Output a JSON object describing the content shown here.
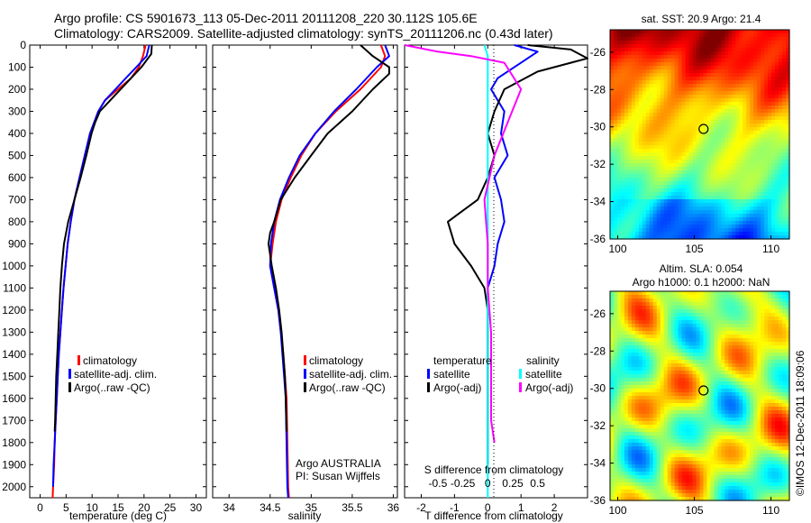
{
  "title_line1": "Argo profile: CS 5901673_113 05-Dec-2011 20111208_220 30.112S 105.6E",
  "title_line2": "Climatology: CARS2009. Satellite-adjusted climatology: synTS_20111206.nc (0.43d later)",
  "colors": {
    "climatology": "#ff0000",
    "satellite_adj": "#0000ff",
    "argo": "#000000",
    "salinity_satellite": "#00ffff",
    "salinity_argo": "#ff00ff"
  },
  "chart_data": [
    {
      "type": "line",
      "id": "temperature",
      "xlabel": "temperature (deg C)",
      "ylabel": "",
      "xlim": [
        -2,
        32
      ],
      "ylim": [
        2050,
        0
      ],
      "xticks": [
        0,
        5,
        10,
        15,
        20,
        25,
        30
      ],
      "yticks": [
        0,
        100,
        200,
        300,
        400,
        500,
        600,
        700,
        800,
        900,
        1000,
        1100,
        1200,
        1300,
        1400,
        1500,
        1600,
        1700,
        1800,
        1900,
        2000
      ],
      "legend": [
        "climatology",
        "satellite-adj. clim.",
        "Argo(..raw -QC)"
      ],
      "series": [
        {
          "name": "climatology",
          "color": "#ff0000",
          "x": [
            20.3,
            19.8,
            19.0,
            17.5,
            15.0,
            12.5,
            11.2,
            10.4,
            9.6,
            8.6,
            7.6,
            6.6,
            5.9,
            5.3,
            4.9,
            4.5,
            4.2,
            3.9,
            3.6,
            3.4,
            3.2,
            3.0,
            2.9,
            2.8,
            2.7,
            2.6,
            2.5,
            2.4
          ],
          "y": [
            0,
            50,
            100,
            150,
            200,
            250,
            300,
            350,
            400,
            500,
            600,
            700,
            800,
            900,
            1000,
            1100,
            1200,
            1300,
            1400,
            1500,
            1600,
            1700,
            1750,
            1800,
            1900,
            1950,
            2000,
            2050
          ]
        },
        {
          "name": "satellite-adj. clim.",
          "color": "#0000ff",
          "x": [
            21.0,
            20.5,
            18.5,
            16.5,
            14.5,
            12.5,
            11.2,
            10.4,
            9.6,
            8.6,
            7.6,
            6.6,
            5.9,
            5.3,
            4.9,
            4.5,
            4.2,
            3.9,
            3.6,
            3.4,
            3.2,
            3.0,
            2.8,
            2.6,
            2.5
          ],
          "y": [
            0,
            50,
            100,
            150,
            200,
            250,
            300,
            350,
            400,
            500,
            600,
            700,
            800,
            900,
            1000,
            1100,
            1200,
            1300,
            1400,
            1500,
            1600,
            1700,
            1800,
            1900,
            2000
          ]
        },
        {
          "name": "Argo(..raw -QC)",
          "color": "#000000",
          "x": [
            21.5,
            21.4,
            19.5,
            17.5,
            15.5,
            13.5,
            11.5,
            10.6,
            9.9,
            8.9,
            7.8,
            6.6,
            5.4,
            4.6,
            4.2,
            3.9,
            3.7,
            3.5,
            3.3,
            3.1,
            3.0,
            2.9,
            2.8
          ],
          "y": [
            0,
            40,
            100,
            150,
            200,
            250,
            300,
            350,
            400,
            500,
            600,
            700,
            800,
            900,
            1000,
            1100,
            1200,
            1300,
            1400,
            1500,
            1600,
            1700,
            1750
          ]
        }
      ]
    },
    {
      "type": "line",
      "id": "salinity",
      "xlabel": "salinity",
      "xlim": [
        33.8,
        36.05
      ],
      "ylim": [
        2050,
        0
      ],
      "xticks": [
        34,
        34.5,
        35,
        35.5,
        36
      ],
      "xticklabels": [
        "34",
        "34.5",
        "35",
        "35.5",
        "36"
      ],
      "legend": [
        "climatology",
        "satellite-adj. clim.",
        "Argo(..raw -QC)"
      ],
      "annotation_line1": "Argo AUSTRALIA",
      "annotation_line2": "PI: Susan Wijffels",
      "series": [
        {
          "name": "climatology",
          "color": "#ff0000",
          "x": [
            35.85,
            35.9,
            35.85,
            35.6,
            35.3,
            35.05,
            34.88,
            34.75,
            34.64,
            34.57,
            34.53,
            34.5,
            34.55,
            34.6,
            34.63,
            34.66,
            34.68,
            34.7,
            34.71,
            34.72,
            34.73
          ],
          "y": [
            0,
            50,
            100,
            200,
            300,
            400,
            500,
            600,
            700,
            800,
            900,
            1000,
            1100,
            1200,
            1300,
            1400,
            1500,
            1600,
            1800,
            2000,
            2050
          ]
        },
        {
          "name": "satellite-adj. clim.",
          "color": "#0000ff",
          "x": [
            35.9,
            35.95,
            35.8,
            35.55,
            35.28,
            35.05,
            34.86,
            34.73,
            34.62,
            34.55,
            34.51,
            34.5,
            34.55,
            34.6,
            34.63,
            34.65,
            34.67,
            34.69,
            34.7,
            34.71,
            34.72
          ],
          "y": [
            0,
            50,
            100,
            200,
            300,
            400,
            500,
            600,
            700,
            800,
            900,
            1000,
            1100,
            1200,
            1300,
            1400,
            1500,
            1600,
            1800,
            2000,
            2050
          ]
        },
        {
          "name": "Argo(..raw -QC)",
          "color": "#000000",
          "x": [
            35.6,
            35.75,
            35.95,
            35.95,
            35.75,
            35.5,
            35.2,
            35.0,
            34.8,
            34.63,
            34.55,
            34.5,
            34.48,
            34.52,
            34.57,
            34.61,
            34.64,
            34.66,
            34.68,
            34.69,
            34.7
          ],
          "y": [
            0,
            50,
            100,
            130,
            200,
            300,
            400,
            500,
            600,
            700,
            800,
            850,
            900,
            1000,
            1100,
            1200,
            1300,
            1400,
            1500,
            1600,
            1750
          ]
        }
      ]
    },
    {
      "type": "line",
      "id": "difference",
      "xlabel": "T difference from climatology",
      "top_xlabel": "S difference from climatology",
      "xlim": [
        -2.5,
        3.0
      ],
      "ylim": [
        2050,
        0
      ],
      "xticks": [
        -2,
        -1,
        0,
        1,
        2
      ],
      "s_ticklabels": [
        "-0.5",
        "-0.25",
        "0",
        "0.25",
        "0.5"
      ],
      "legend_temperature": "temperature",
      "legend_salinity": "salinity",
      "legend_satellite": "satellite",
      "legend_argo": "Argo(-adj)",
      "series": [
        {
          "name": "temperature satellite",
          "color": "#0000ff",
          "x": [
            0.8,
            1.5,
            1.0,
            0.3,
            0.1,
            0.5,
            0.4,
            0.6,
            0.2,
            0.4,
            0.5,
            0.3,
            0.2,
            0.0,
            0.0,
            0.0,
            0.0,
            0.0,
            0.0
          ],
          "y": [
            0,
            30,
            80,
            150,
            200,
            300,
            400,
            500,
            600,
            700,
            800,
            900,
            1000,
            1100,
            1200,
            1400,
            1600,
            1800,
            1900
          ]
        },
        {
          "name": "temperature Argo(-adj)",
          "color": "#000000",
          "x": [
            1.2,
            2.5,
            3.0,
            1.5,
            0.5,
            0.2,
            0.0,
            0.2,
            0.0,
            -0.3,
            -1.2,
            -1.0,
            -0.5,
            -0.1,
            0.0,
            0.0,
            0.0,
            0.0,
            0.0
          ],
          "y": [
            0,
            20,
            60,
            120,
            200,
            300,
            400,
            500,
            600,
            700,
            800,
            900,
            1000,
            1100,
            1200,
            1400,
            1600,
            1800,
            1900
          ]
        },
        {
          "name": "salinity satellite",
          "color": "#00ffff",
          "x": [
            -0.1,
            0.0,
            0.0,
            0.0,
            0.0,
            0.0,
            0.0,
            0.0,
            0.0,
            0.0,
            0.0,
            0.0
          ],
          "y": [
            0,
            50,
            100,
            200,
            400,
            600,
            800,
            1000,
            1400,
            1800,
            2000,
            2050
          ]
        },
        {
          "name": "salinity Argo(-adj)",
          "color": "#ff00ff",
          "x": [
            -2.5,
            -1.5,
            -0.5,
            0.5,
            1.0,
            0.6,
            0.2,
            -0.1,
            0.0,
            0.0,
            0.1,
            0.1,
            0.1,
            0.2
          ],
          "y": [
            0,
            30,
            50,
            80,
            200,
            350,
            500,
            700,
            900,
            1100,
            1300,
            1500,
            1700,
            1800
          ]
        }
      ]
    },
    {
      "type": "heatmap",
      "id": "sst-map",
      "title": "sat. SST: 20.9  Argo: 21.4",
      "xlim": [
        99.5,
        111.2
      ],
      "ylim": [
        -36,
        -24.8
      ],
      "xticks": [
        100,
        105,
        110
      ],
      "yticks": [
        -26,
        -28,
        -30,
        -32,
        -34,
        -36
      ],
      "marker": {
        "lon": 105.6,
        "lat": -30.112
      }
    },
    {
      "type": "heatmap",
      "id": "sla-map",
      "title_line1": "Altim. SLA: 0.054",
      "title_line2": "Argo h1000: 0.1 h2000: NaN",
      "xlim": [
        99.5,
        111.2
      ],
      "ylim": [
        -36,
        -24.8
      ],
      "xticks": [
        100,
        105,
        110
      ],
      "yticks": [
        -26,
        -28,
        -30,
        -32,
        -34,
        -36
      ],
      "marker": {
        "lon": 105.6,
        "lat": -30.112
      }
    }
  ],
  "footer_credit": "©IMOS 12-Dec-2011 18:09:06"
}
